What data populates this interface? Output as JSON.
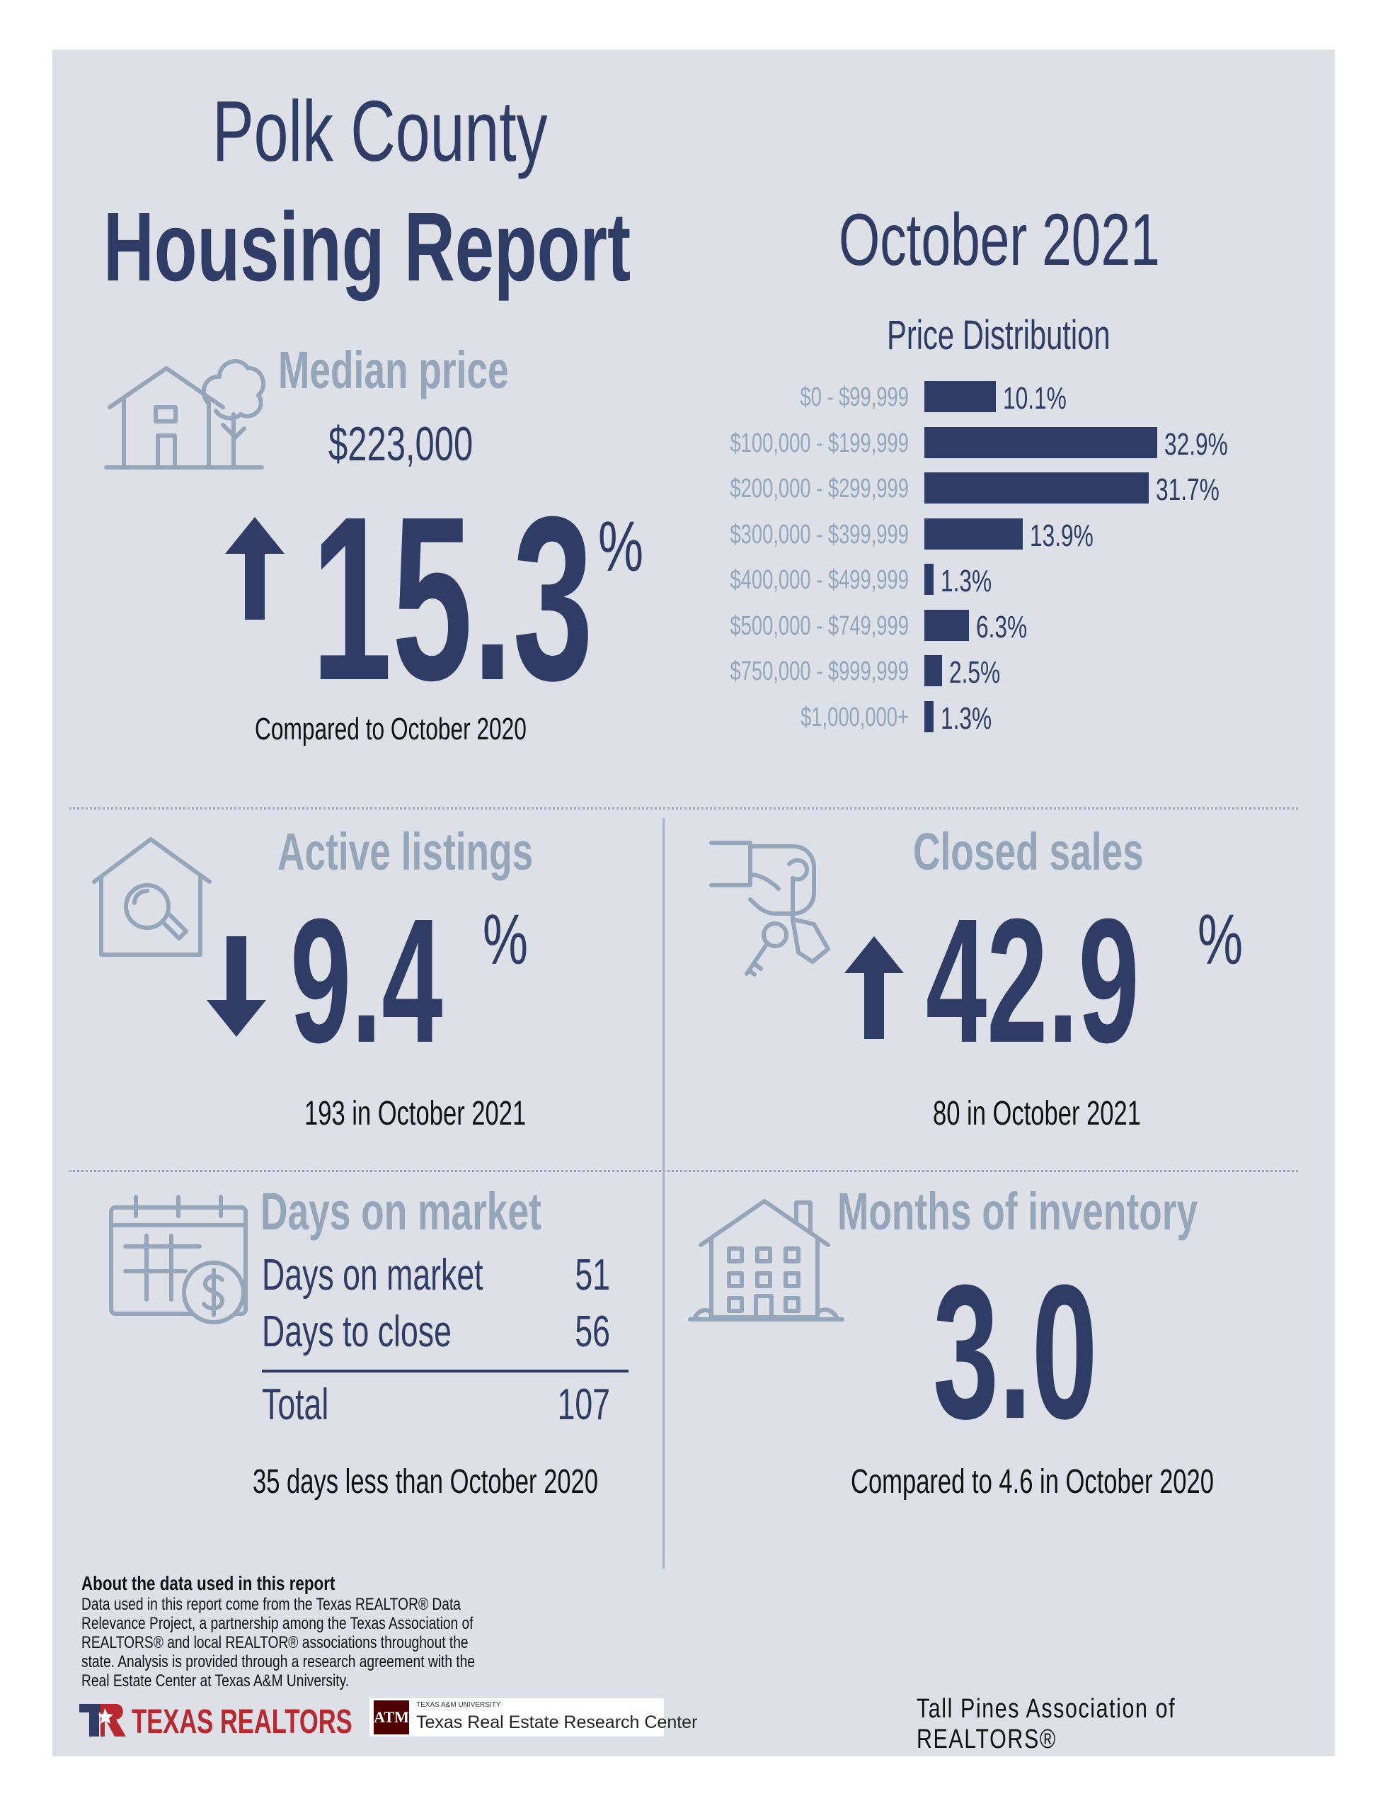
{
  "header": {
    "title_line1": "Polk County",
    "title_line2": "Housing Report",
    "month": "October 2021"
  },
  "median_price": {
    "label": "Median price",
    "value": "$223,000",
    "change": "15.3",
    "percent_sign": "%",
    "direction": "up",
    "comparison": "Compared to October 2020"
  },
  "price_distribution": {
    "title": "Price Distribution",
    "rows": [
      {
        "range": "$0 - $99,999",
        "pct_label": "10.1%"
      },
      {
        "range": "$100,000 - $199,999",
        "pct_label": "32.9%"
      },
      {
        "range": "$200,000 - $299,999",
        "pct_label": "31.7%"
      },
      {
        "range": "$300,000 - $399,999",
        "pct_label": "13.9%"
      },
      {
        "range": "$400,000 - $499,999",
        "pct_label": "1.3%"
      },
      {
        "range": "$500,000 - $749,999",
        "pct_label": "6.3%"
      },
      {
        "range": "$750,000 - $999,999",
        "pct_label": "2.5%"
      },
      {
        "range": "$1,000,000+",
        "pct_label": "1.3%"
      }
    ]
  },
  "chart_data": {
    "type": "bar",
    "title": "Price Distribution",
    "categories": [
      "$0 - $99,999",
      "$100,000 - $199,999",
      "$200,000 - $299,999",
      "$300,000 - $399,999",
      "$400,000 - $499,999",
      "$500,000 - $749,999",
      "$750,000 - $999,999",
      "$1,000,000+"
    ],
    "values": [
      10.1,
      32.9,
      31.7,
      13.9,
      1.3,
      6.3,
      2.5,
      1.3
    ],
    "orientation": "horizontal",
    "bar_color": "#2f3c65"
  },
  "active_listings": {
    "label": "Active listings",
    "change": "9.4",
    "percent_sign": "%",
    "direction": "down",
    "sub": "193 in October 2021"
  },
  "closed_sales": {
    "label": "Closed sales",
    "change": "42.9",
    "percent_sign": "%",
    "direction": "up",
    "sub": "80 in October 2021"
  },
  "days_on_market": {
    "label": "Days on market",
    "rows": [
      {
        "label": "Days on market",
        "value": "51"
      },
      {
        "label": "Days to close",
        "value": "56"
      }
    ],
    "total_label": "Total",
    "total_value": "107",
    "sub": "35 days less than October 2020"
  },
  "months_inventory": {
    "label": "Months of inventory",
    "value": "3.0",
    "sub": "Compared to 4.6 in October 2020"
  },
  "footer": {
    "about_title": "About the data used in this report",
    "about_text": "Data used in this report come from the Texas REALTOR® Data Relevance Project, a partnership among the Texas Association of REALTORS® and local REALTOR® associations throughout the state. Analysis is provided through a research agreement with the Real Estate Center at Texas A&M University.",
    "logo_texas_realtors": "TEXAS REALTORS",
    "tamu_small": "TEXAS A&M UNIVERSITY",
    "tamu_name": "Texas Real Estate Research Center",
    "association": "Tall Pines Association of REALTORS®"
  },
  "colors": {
    "navy": "#2f3c65",
    "muted": "#95a6bb",
    "panel": "#dde0e6",
    "brand_red": "#b8282e"
  }
}
